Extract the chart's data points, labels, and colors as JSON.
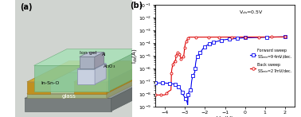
{
  "xlabel": "V$_{gs}$(V)",
  "ylabel": "I$_{ds}$(A)",
  "xlim": [
    -4.5,
    2.5
  ],
  "ylim_log": [
    -9,
    -4.7
  ],
  "vds_label": "V$_{ds}$=0.5V",
  "forward_label": "Forward sweep\nSS$_{min}$=94mV/dec.",
  "back_label": "Back sweep\nSS$_{min}$=27mV/dec.",
  "forward_color": "#0000ee",
  "back_color": "#dd0000",
  "panel_a_label": "(a)",
  "panel_b_label": "(b)",
  "bg_color": "#c8ccc8",
  "glass_color": "#909898",
  "iso_color": "#b8c8b0",
  "gold_color": "#d4a832",
  "iongel_color": "#a8d8b0",
  "al2o3_color": "#d0d8e8",
  "al_color": "#b0b8c8"
}
